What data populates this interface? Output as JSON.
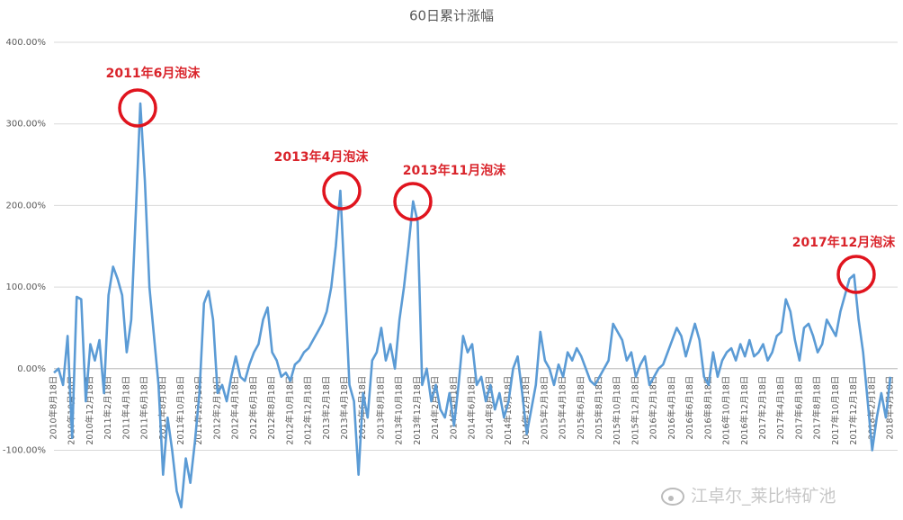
{
  "chart_data": {
    "type": "line",
    "title": "60日累计涨幅",
    "categories": [
      "2010年8月18日",
      null,
      null,
      null,
      "2010年10月18日",
      null,
      null,
      null,
      "2010年12月18日",
      null,
      null,
      null,
      "2011年2月18日",
      null,
      null,
      null,
      "2011年4月18日",
      null,
      null,
      null,
      "2011年6月18日",
      null,
      null,
      null,
      "2011年8月18日",
      null,
      null,
      null,
      "2011年10月18日",
      null,
      null,
      null,
      "2011年12月18日",
      null,
      null,
      null,
      "2012年2月18日",
      null,
      null,
      null,
      "2012年4月18日",
      null,
      null,
      null,
      "2012年6月18日",
      null,
      null,
      null,
      "2012年8月18日",
      null,
      null,
      null,
      "2012年10月18日",
      null,
      null,
      null,
      "2012年12月18日",
      null,
      null,
      null,
      "2013年2月18日",
      null,
      null,
      null,
      "2013年4月18日",
      null,
      null,
      null,
      "2013年6月18日",
      null,
      null,
      null,
      "2013年8月18日",
      null,
      null,
      null,
      "2013年10月18日",
      null,
      null,
      null,
      "2013年12月18日",
      null,
      null,
      null,
      "2014年2月18日",
      null,
      null,
      null,
      "2014年4月18日",
      null,
      null,
      null,
      "2014年6月18日",
      null,
      null,
      null,
      "2014年8月18日",
      null,
      null,
      null,
      "2014年10月18日",
      null,
      null,
      null,
      "2014年12月18日",
      null,
      null,
      null,
      "2015年2月18日",
      null,
      null,
      null,
      "2015年4月18日",
      null,
      null,
      null,
      "2015年6月18日",
      null,
      null,
      null,
      "2015年8月18日",
      null,
      null,
      null,
      "2015年10月18日",
      null,
      null,
      null,
      "2015年12月18日",
      null,
      null,
      null,
      "2016年2月18日",
      null,
      null,
      null,
      "2016年4月18日",
      null,
      null,
      null,
      "2016年6月18日",
      null,
      null,
      null,
      "2016年8月18日",
      null,
      null,
      null,
      "2016年10月18日",
      null,
      null,
      null,
      "2016年12月18日",
      null,
      null,
      null,
      "2017年2月18日",
      null,
      null,
      null,
      "2017年4月18日",
      null,
      null,
      null,
      "2017年6月18日",
      null,
      null,
      null,
      "2017年8月18日",
      null,
      null,
      null,
      "2017年10月18日",
      null,
      null,
      null,
      "2017年12月18日",
      null,
      null,
      null,
      "2018年2月18日",
      null,
      null,
      null,
      "2018年4月18日"
    ],
    "values": [
      -5,
      0,
      -20,
      40,
      -85,
      88,
      85,
      -40,
      30,
      10,
      35,
      -30,
      90,
      125,
      110,
      90,
      20,
      60,
      190,
      325,
      230,
      100,
      40,
      -20,
      -130,
      -60,
      -100,
      -150,
      -170,
      -110,
      -140,
      -90,
      -30,
      80,
      95,
      60,
      -30,
      -20,
      -40,
      -10,
      15,
      -10,
      -15,
      5,
      20,
      30,
      60,
      75,
      20,
      10,
      -10,
      -5,
      -15,
      5,
      10,
      20,
      25,
      35,
      45,
      55,
      70,
      100,
      150,
      218,
      100,
      -20,
      -40,
      -130,
      -30,
      -60,
      10,
      20,
      50,
      10,
      30,
      0,
      60,
      100,
      150,
      205,
      180,
      -20,
      0,
      -40,
      -20,
      -50,
      -60,
      -30,
      -70,
      -20,
      40,
      20,
      30,
      -20,
      -10,
      -40,
      -20,
      -50,
      -30,
      -60,
      -40,
      0,
      15,
      -30,
      -80,
      -50,
      -20,
      45,
      10,
      0,
      -20,
      5,
      -10,
      20,
      10,
      25,
      15,
      0,
      -15,
      -20,
      -10,
      0,
      10,
      55,
      45,
      35,
      10,
      20,
      -10,
      5,
      15,
      -20,
      -10,
      0,
      5,
      20,
      35,
      50,
      40,
      15,
      35,
      55,
      35,
      -10,
      -20,
      20,
      -10,
      10,
      20,
      25,
      10,
      30,
      15,
      35,
      15,
      20,
      30,
      10,
      20,
      40,
      45,
      85,
      70,
      35,
      10,
      50,
      55,
      40,
      20,
      30,
      60,
      50,
      40,
      70,
      90,
      110,
      115,
      60,
      20,
      -40,
      -100,
      -60,
      -30,
      -60,
      -10
    ],
    "color": "#5b9bd5",
    "ylim": [
      -180,
      400
    ],
    "yticks": [
      {
        "value": -100,
        "label": "-100.00%"
      },
      {
        "value": 0,
        "label": "0.00%"
      },
      {
        "value": 100,
        "label": "100.00%"
      },
      {
        "value": 200,
        "label": "200.00%"
      },
      {
        "value": 300,
        "label": "300.00%"
      },
      {
        "value": 400,
        "label": "400.00%"
      }
    ],
    "grid": true,
    "annotations": [
      "2011年6月泡沫",
      "2013年4月泡沫",
      "2013年11月泡沫",
      "2017年12月泡沫"
    ],
    "watermark": "江卓尔_莱比特矿池"
  }
}
